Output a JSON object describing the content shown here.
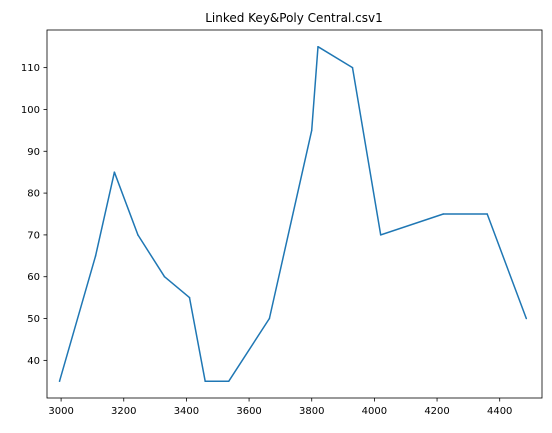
{
  "chart_data": {
    "type": "line",
    "title": "Linked Key&Poly Central.csv1",
    "xlabel": "",
    "ylabel": "",
    "xlim": [
      2955,
      4535
    ],
    "ylim": [
      31,
      119
    ],
    "x_ticks": [
      3000,
      3200,
      3400,
      3600,
      3800,
      4000,
      4200,
      4400
    ],
    "y_ticks": [
      40,
      50,
      60,
      70,
      80,
      90,
      100,
      110
    ],
    "grid": false,
    "series": [
      {
        "color": "#1f77b4",
        "points": [
          {
            "x": 2995,
            "y": 35
          },
          {
            "x": 3110,
            "y": 65
          },
          {
            "x": 3170,
            "y": 85
          },
          {
            "x": 3245,
            "y": 70
          },
          {
            "x": 3330,
            "y": 60
          },
          {
            "x": 3410,
            "y": 55
          },
          {
            "x": 3460,
            "y": 35
          },
          {
            "x": 3535,
            "y": 35
          },
          {
            "x": 3665,
            "y": 50
          },
          {
            "x": 3800,
            "y": 95
          },
          {
            "x": 3820,
            "y": 115
          },
          {
            "x": 3930,
            "y": 110
          },
          {
            "x": 4020,
            "y": 70
          },
          {
            "x": 4220,
            "y": 75
          },
          {
            "x": 4360,
            "y": 75
          },
          {
            "x": 4485,
            "y": 50
          }
        ]
      }
    ]
  }
}
